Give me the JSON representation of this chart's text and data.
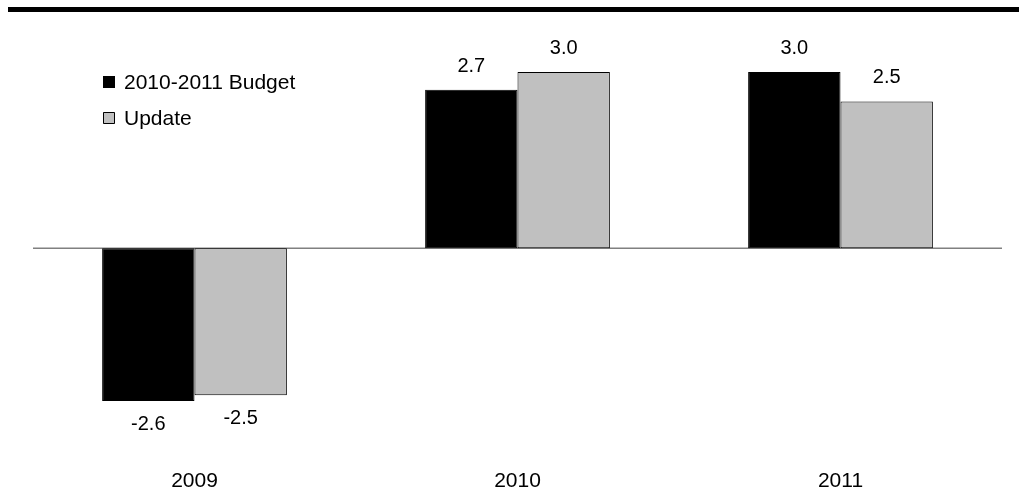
{
  "chart_data": {
    "type": "bar",
    "categories": [
      "2009",
      "2010",
      "2011"
    ],
    "series": [
      {
        "name": "2010-2011 Budget",
        "color": "#000000",
        "values": [
          -2.6,
          2.7,
          3.0
        ],
        "value_labels": [
          "-2.6",
          "2.7",
          "3.0"
        ]
      },
      {
        "name": "Update",
        "color": "#c0c0c0",
        "values": [
          -2.5,
          3.0,
          2.5
        ],
        "value_labels": [
          "-2.5",
          "3.0",
          "2.5"
        ]
      }
    ],
    "legend": "top left"
  }
}
